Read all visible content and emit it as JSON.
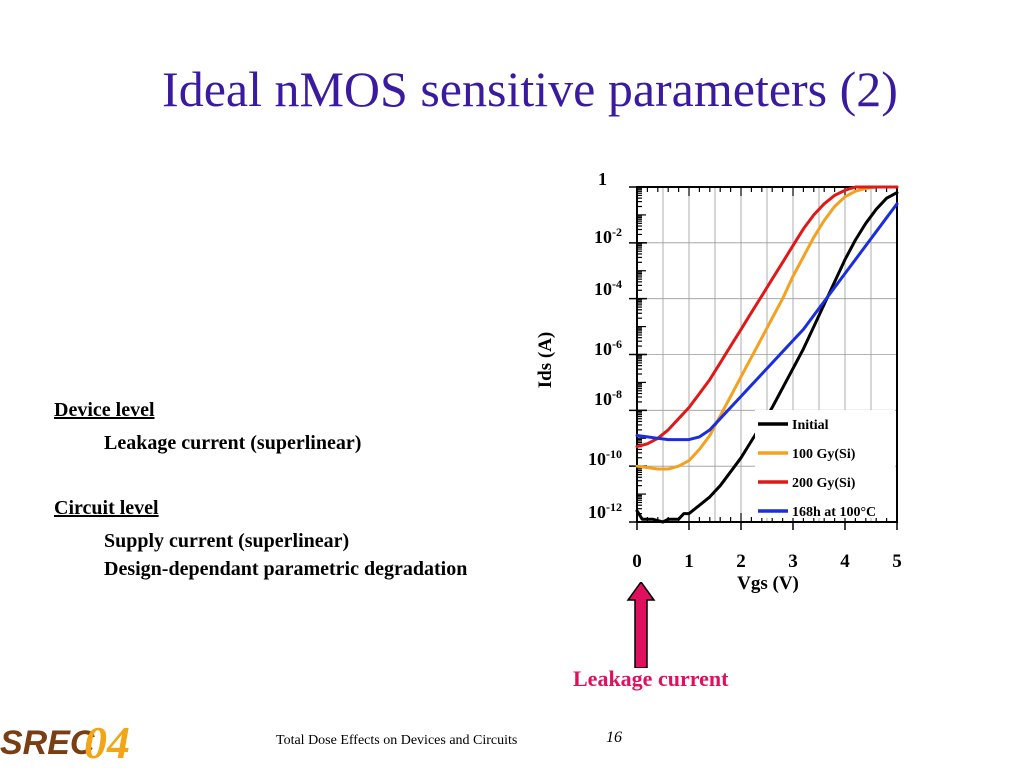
{
  "slide": {
    "title": "Ideal nMOS sensitive parameters (2)",
    "bullets": {
      "device_level": "Device level",
      "leakage_current": "Leakage current (superlinear)",
      "circuit_level": "Circuit level",
      "supply_current": "Supply current (superlinear)",
      "design_degradation": "Design-dependant parametric degradation"
    },
    "annotation": "Leakage current",
    "footer": "Total Dose Effects on Devices and Circuits",
    "page_number": "16",
    "logo_text": "SREC04"
  },
  "colors": {
    "title": "#3a1aa0",
    "annotation": "#e0105f",
    "arrow_fill": "#e0105f"
  },
  "chart_data": {
    "type": "line",
    "xlabel": "Vgs (V)",
    "ylabel": "Ids (A)",
    "xlim": [
      0,
      5
    ],
    "ylim_log10": [
      -12,
      0
    ],
    "y_scale": "log",
    "x_ticks": [
      "0",
      "1",
      "2",
      "3",
      "4",
      "5"
    ],
    "y_ticks": [
      {
        "base": "1",
        "exp": ""
      },
      {
        "base": "10",
        "exp": "-2"
      },
      {
        "base": "10",
        "exp": "-4"
      },
      {
        "base": "10",
        "exp": "-6"
      },
      {
        "base": "10",
        "exp": "-8"
      },
      {
        "base": "10",
        "exp": "-10"
      },
      {
        "base": "10",
        "exp": "-12"
      }
    ],
    "legend_position": "inside-bottom-right",
    "series": [
      {
        "name": "Initial",
        "color": "#000000",
        "x": [
          0,
          0.1,
          0.3,
          0.5,
          0.6,
          0.8,
          0.9,
          1.0,
          1.2,
          1.4,
          1.6,
          1.8,
          2.0,
          2.2,
          2.4,
          2.6,
          2.8,
          3.0,
          3.2,
          3.4,
          3.6,
          3.8,
          4.0,
          4.2,
          4.4,
          4.6,
          4.8,
          5.0
        ],
        "log_y": [
          -11.6,
          -11.9,
          -11.9,
          -12.0,
          -11.9,
          -11.9,
          -11.7,
          -11.7,
          -11.4,
          -11.1,
          -10.7,
          -10.2,
          -9.7,
          -9.1,
          -8.5,
          -7.9,
          -7.2,
          -6.5,
          -5.8,
          -5.0,
          -4.2,
          -3.4,
          -2.6,
          -1.9,
          -1.3,
          -0.8,
          -0.4,
          -0.2
        ]
      },
      {
        "name": "100 Gy(Si)",
        "color": "#f5a01e",
        "x": [
          0,
          0.2,
          0.4,
          0.6,
          0.8,
          1.0,
          1.2,
          1.4,
          1.6,
          1.8,
          2.0,
          2.2,
          2.4,
          2.6,
          2.8,
          3.0,
          3.2,
          3.4,
          3.6,
          3.8,
          4.0,
          4.2,
          4.4,
          4.6,
          4.8,
          5.0
        ],
        "log_y": [
          -10.0,
          -10.05,
          -10.1,
          -10.1,
          -10.0,
          -9.8,
          -9.4,
          -8.9,
          -8.2,
          -7.5,
          -6.8,
          -6.1,
          -5.4,
          -4.7,
          -4.0,
          -3.2,
          -2.5,
          -1.8,
          -1.2,
          -0.7,
          -0.35,
          -0.15,
          -0.05,
          0.0,
          0.0,
          0.0
        ]
      },
      {
        "name": "200 Gy(Si)",
        "color": "#e01818",
        "x": [
          0,
          0.2,
          0.4,
          0.6,
          0.8,
          1.0,
          1.2,
          1.4,
          1.6,
          1.8,
          2.0,
          2.2,
          2.4,
          2.6,
          2.8,
          3.0,
          3.2,
          3.4,
          3.6,
          3.8,
          4.0,
          4.2,
          4.4,
          4.6,
          4.8,
          5.0
        ],
        "log_y": [
          -9.3,
          -9.2,
          -9.0,
          -8.7,
          -8.3,
          -7.9,
          -7.4,
          -6.9,
          -6.3,
          -5.7,
          -5.1,
          -4.5,
          -3.9,
          -3.3,
          -2.7,
          -2.1,
          -1.5,
          -1.0,
          -0.6,
          -0.3,
          -0.12,
          0.0,
          0.0,
          0.0,
          0.0,
          0.0
        ]
      },
      {
        "name": "168h at 100°C",
        "color": "#1a2ee0",
        "x": [
          0,
          0.2,
          0.4,
          0.6,
          0.8,
          1.0,
          1.2,
          1.4,
          1.6,
          1.8,
          2.0,
          2.2,
          2.4,
          2.6,
          2.8,
          3.0,
          3.2,
          3.4,
          3.6,
          3.8,
          4.0,
          4.2,
          4.4,
          4.6,
          4.8,
          5.0
        ],
        "log_y": [
          -8.9,
          -8.95,
          -9.0,
          -9.05,
          -9.05,
          -9.05,
          -8.95,
          -8.7,
          -8.3,
          -7.9,
          -7.5,
          -7.1,
          -6.7,
          -6.3,
          -5.9,
          -5.5,
          -5.1,
          -4.6,
          -4.1,
          -3.6,
          -3.1,
          -2.6,
          -2.1,
          -1.6,
          -1.1,
          -0.6
        ]
      }
    ]
  }
}
